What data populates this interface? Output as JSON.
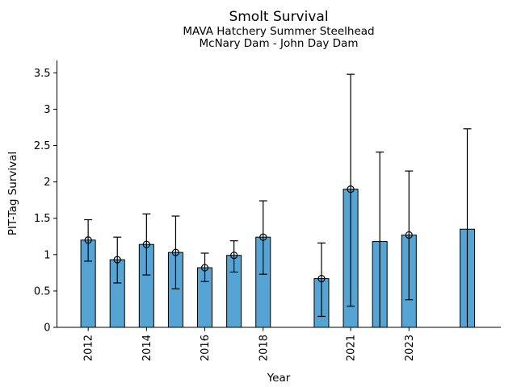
{
  "chart_data": {
    "type": "bar",
    "title": "Smolt Survival",
    "subtitle1": "MAVA Hatchery Summer Steelhead",
    "subtitle2": "McNary Dam - John Day Dam",
    "xlabel": "Year",
    "ylabel": "PIT-Tag Survival",
    "ylim": [
      0,
      3.67
    ],
    "xlim": [
      2010.93,
      2026.15
    ],
    "grid": false,
    "legend": null,
    "yticks": [
      0,
      0.5,
      1,
      1.5,
      2,
      2.5,
      3,
      3.5
    ],
    "ytick_labels": [
      "0",
      "0.5",
      "1",
      "1.5",
      "2",
      "2.5",
      "3",
      "3.5"
    ],
    "xticks": [
      2012,
      2014,
      2016,
      2018,
      2021,
      2023
    ],
    "xtick_labels": [
      "2012",
      "2014",
      "2016",
      "2018",
      "2021",
      "2023"
    ],
    "bar_color": "#56a4d4",
    "bar_edge_color": "#000000",
    "errorbar_color": "#000000",
    "marker": "open-circle",
    "bar_width_years": 0.5,
    "points": [
      {
        "year": 2012,
        "value": 1.2,
        "err_lo": 0.91,
        "err_hi": 1.48,
        "marker": true
      },
      {
        "year": 2013,
        "value": 0.93,
        "err_lo": 0.61,
        "err_hi": 1.24,
        "marker": true
      },
      {
        "year": 2014,
        "value": 1.14,
        "err_lo": 0.72,
        "err_hi": 1.56,
        "marker": true
      },
      {
        "year": 2015,
        "value": 1.03,
        "err_lo": 0.53,
        "err_hi": 1.53,
        "marker": true
      },
      {
        "year": 2016,
        "value": 0.82,
        "err_lo": 0.63,
        "err_hi": 1.02,
        "marker": true
      },
      {
        "year": 2017,
        "value": 0.99,
        "err_lo": 0.76,
        "err_hi": 1.19,
        "marker": true
      },
      {
        "year": 2018,
        "value": 1.24,
        "err_lo": 0.73,
        "err_hi": 1.74,
        "marker": true
      },
      {
        "year": 2020,
        "value": 0.67,
        "err_lo": 0.15,
        "err_hi": 1.16,
        "marker": true
      },
      {
        "year": 2021,
        "value": 1.9,
        "err_lo": 0.29,
        "err_hi": 3.48,
        "marker": true
      },
      {
        "year": 2022,
        "value": 1.18,
        "err_lo": 0.0,
        "err_hi": 2.41,
        "marker": false
      },
      {
        "year": 2023,
        "value": 1.27,
        "err_lo": 0.38,
        "err_hi": 2.15,
        "marker": true
      },
      {
        "year": 2025,
        "value": 1.35,
        "err_lo": 0.0,
        "err_hi": 2.73,
        "marker": false
      }
    ]
  }
}
